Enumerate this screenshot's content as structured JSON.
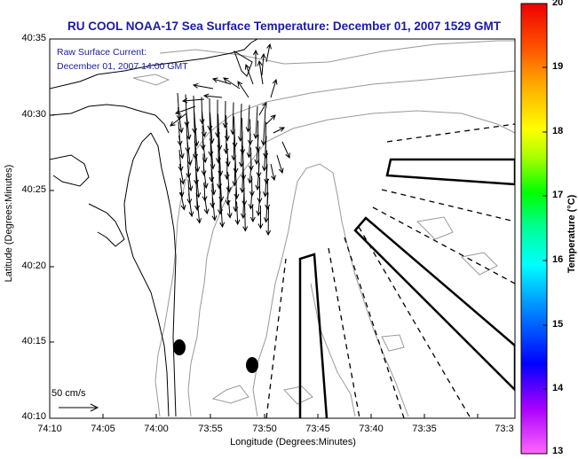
{
  "title": "RU COOL  NOAA-17  Sea Surface Temperature:  December 01, 2007 1529 GMT",
  "current": {
    "line1": "Raw Surface Current:",
    "line2": "December 01, 2007 14:00 GMT"
  },
  "axes": {
    "xlabel": "Longitude (Degrees:Minutes)",
    "ylabel": "Latitude (Degrees:Minutes)",
    "xticks": [
      "74:10",
      "74:05",
      "74:00",
      "73:55",
      "73:50",
      "73:45",
      "73:40",
      "73:35",
      "73:3"
    ],
    "yticks": [
      "40:35",
      "40:30",
      "40:25",
      "40:20",
      "40:15",
      "40:10"
    ]
  },
  "scale": {
    "label": "50 cm/s"
  },
  "colorbar": {
    "label": "Temperature (°C)",
    "ticks": [
      "20",
      "19",
      "18",
      "17",
      "16",
      "15",
      "14",
      "13"
    ],
    "range": [
      13,
      20
    ]
  },
  "colors": {
    "title": "#1a1aa8",
    "coastline": "#000000",
    "bathymetry": "#999999",
    "arrows": "#000000",
    "background": "#ffffff"
  }
}
